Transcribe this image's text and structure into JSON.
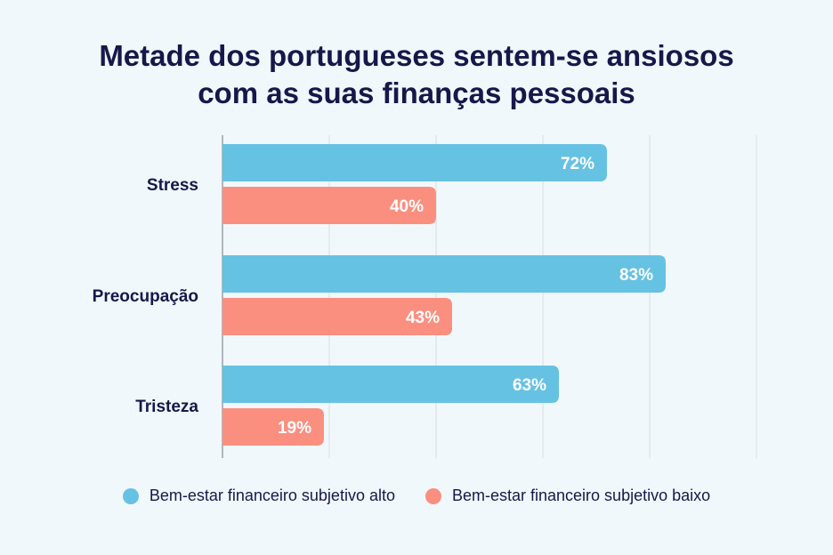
{
  "chart_data": {
    "type": "bar",
    "orientation": "horizontal",
    "title_lines": [
      "Metade dos portugueses sentem-se ansiosos",
      "com as suas finanças pessoais"
    ],
    "categories": [
      "Stress",
      "Preocupação",
      "Tristeza"
    ],
    "series": [
      {
        "name": "Bem-estar financeiro subjetivo alto",
        "values": [
          72,
          83,
          63
        ],
        "labels": [
          "72%",
          "83%",
          "63%"
        ],
        "color": "#66c2e2"
      },
      {
        "name": "Bem-estar financeiro subjetivo baixo",
        "values": [
          40,
          43,
          19
        ],
        "labels": [
          "40%",
          "43%",
          "19%"
        ],
        "color": "#fa8f80"
      }
    ],
    "xlim": [
      0,
      100
    ],
    "grid": true,
    "legend_position": "bottom"
  }
}
